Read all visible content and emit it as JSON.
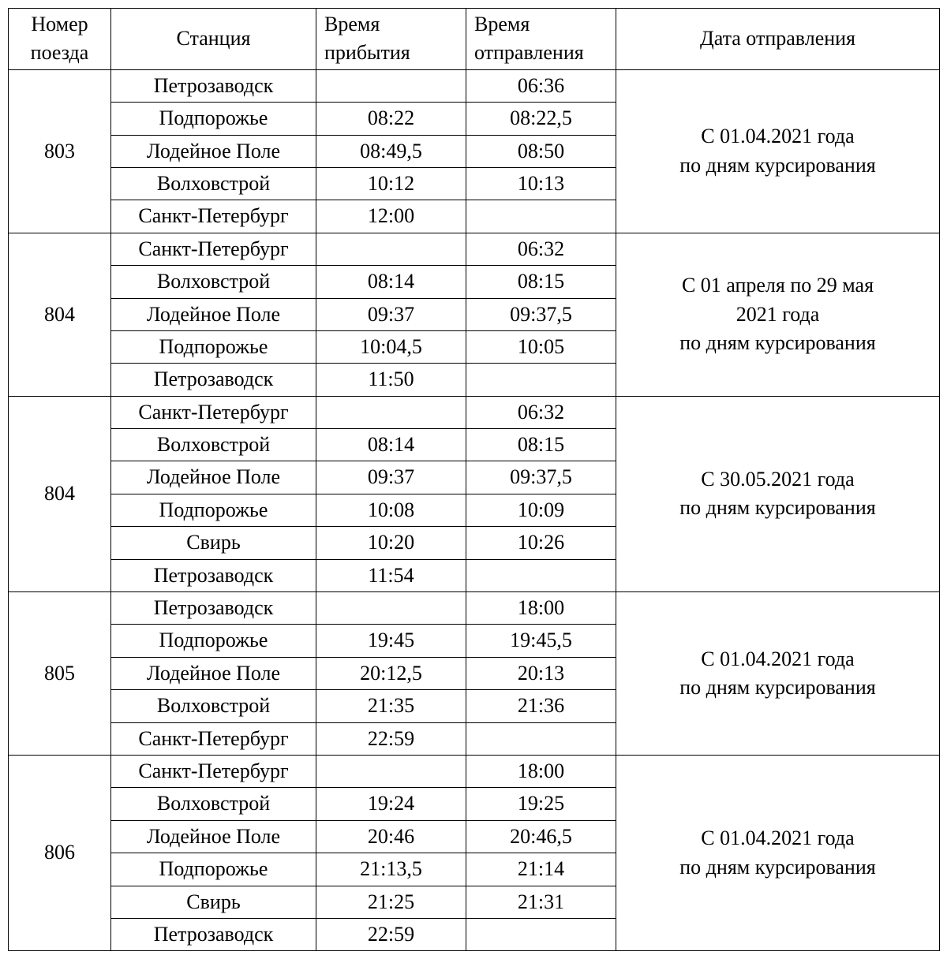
{
  "columns": {
    "train_no": "Номер поезда",
    "station": "Станция",
    "arrival": "Время прибытия",
    "departure": "Время отправления",
    "date": "Дата отправления"
  },
  "groups": [
    {
      "train_no": "803",
      "date_lines": [
        "С 01.04.2021 года",
        "по дням курсирования"
      ],
      "rows": [
        {
          "station": "Петрозаводск",
          "arrival": "",
          "departure": "06:36"
        },
        {
          "station": "Подпорожье",
          "arrival": "08:22",
          "departure": "08:22,5"
        },
        {
          "station": "Лодейное Поле",
          "arrival": "08:49,5",
          "departure": "08:50"
        },
        {
          "station": "Волховстрой",
          "arrival": "10:12",
          "departure": "10:13"
        },
        {
          "station": "Санкт-Петербург",
          "arrival": "12:00",
          "departure": ""
        }
      ]
    },
    {
      "train_no": "804",
      "date_lines": [
        "С 01 апреля по 29 мая",
        "2021 года",
        "по дням курсирования"
      ],
      "rows": [
        {
          "station": "Санкт-Петербург",
          "arrival": "",
          "departure": "06:32"
        },
        {
          "station": "Волховстрой",
          "arrival": "08:14",
          "departure": "08:15"
        },
        {
          "station": "Лодейное Поле",
          "arrival": "09:37",
          "departure": "09:37,5"
        },
        {
          "station": "Подпорожье",
          "arrival": "10:04,5",
          "departure": "10:05"
        },
        {
          "station": "Петрозаводск",
          "arrival": "11:50",
          "departure": ""
        }
      ]
    },
    {
      "train_no": "804",
      "date_lines": [
        "С 30.05.2021 года",
        "по дням курсирования"
      ],
      "rows": [
        {
          "station": "Санкт-Петербург",
          "arrival": "",
          "departure": "06:32"
        },
        {
          "station": "Волховстрой",
          "arrival": "08:14",
          "departure": "08:15"
        },
        {
          "station": "Лодейное Поле",
          "arrival": "09:37",
          "departure": "09:37,5"
        },
        {
          "station": "Подпорожье",
          "arrival": "10:08",
          "departure": "10:09"
        },
        {
          "station": "Свирь",
          "arrival": "10:20",
          "departure": "10:26"
        },
        {
          "station": "Петрозаводск",
          "arrival": "11:54",
          "departure": ""
        }
      ]
    },
    {
      "train_no": "805",
      "date_lines": [
        "С 01.04.2021 года",
        "по дням курсирования"
      ],
      "rows": [
        {
          "station": "Петрозаводск",
          "arrival": "",
          "departure": "18:00"
        },
        {
          "station": "Подпорожье",
          "arrival": "19:45",
          "departure": "19:45,5"
        },
        {
          "station": "Лодейное Поле",
          "arrival": "20:12,5",
          "departure": "20:13"
        },
        {
          "station": "Волховстрой",
          "arrival": "21:35",
          "departure": "21:36"
        },
        {
          "station": "Санкт-Петербург",
          "arrival": "22:59",
          "departure": ""
        }
      ]
    },
    {
      "train_no": "806",
      "date_lines": [
        "С 01.04.2021 года",
        "по дням курсирования"
      ],
      "rows": [
        {
          "station": "Санкт-Петербург",
          "arrival": "",
          "departure": "18:00"
        },
        {
          "station": "Волховстрой",
          "arrival": "19:24",
          "departure": "19:25"
        },
        {
          "station": "Лодейное Поле",
          "arrival": "20:46",
          "departure": "20:46,5"
        },
        {
          "station": "Подпорожье",
          "arrival": "21:13,5",
          "departure": "21:14"
        },
        {
          "station": "Свирь",
          "arrival": "21:25",
          "departure": "21:31"
        },
        {
          "station": "Петрозаводск",
          "arrival": "22:59",
          "departure": ""
        }
      ]
    }
  ]
}
